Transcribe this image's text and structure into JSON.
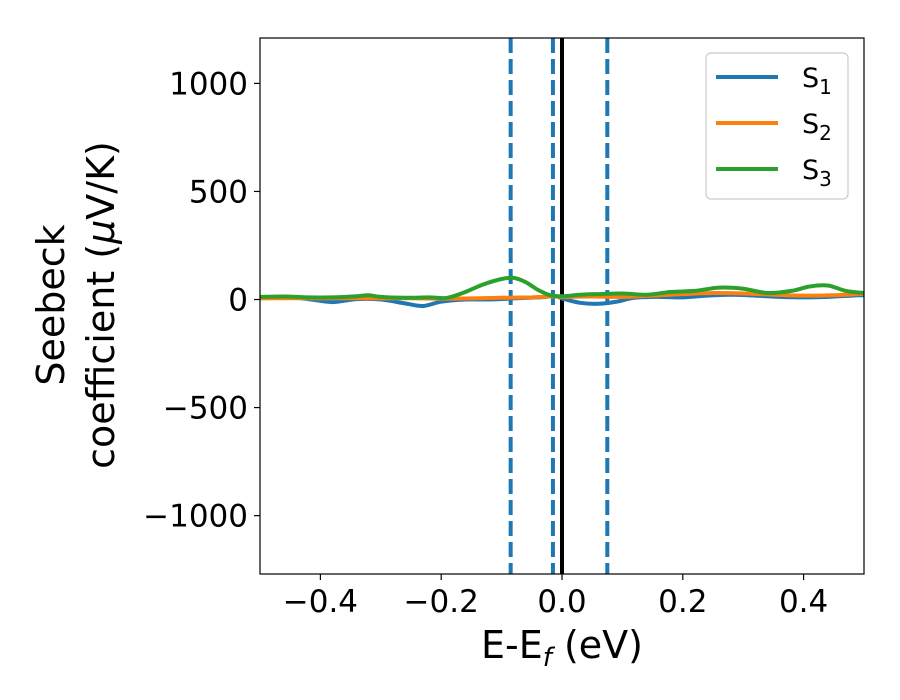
{
  "chart_data": {
    "type": "line",
    "xlabel": {
      "main": "E-E",
      "sub": "f",
      "unit": " (eV)"
    },
    "ylabel": {
      "line1": "Seebeck",
      "line2": "coefficient  (",
      "mu": "μ",
      "unit": "V/K)"
    },
    "xlim": [
      -0.5,
      0.5
    ],
    "ylim": [
      -1270,
      1210
    ],
    "x_ticks": [
      -0.4,
      -0.2,
      0.0,
      0.2,
      0.4
    ],
    "x_tick_labels": [
      "−0.4",
      "−0.2",
      "0.0",
      "0.2",
      "0.4"
    ],
    "y_ticks": [
      1000,
      500,
      0,
      -500,
      -1000
    ],
    "y_tick_labels": [
      "1000",
      "500",
      "0",
      "−500",
      "−1000"
    ],
    "legend_position": "top-right",
    "vlines": [
      {
        "x": -0.085,
        "style": "dashed",
        "color": "#1f77b4"
      },
      {
        "x": -0.015,
        "style": "dashed",
        "color": "#1f77b4"
      },
      {
        "x": 0.0,
        "style": "solid",
        "color": "#000000"
      },
      {
        "x": 0.075,
        "style": "dashed",
        "color": "#1f77b4"
      }
    ],
    "series": [
      {
        "name": "S",
        "sub": "1",
        "color": "#1f77b4",
        "x": [
          -0.5,
          -0.46,
          -0.42,
          -0.38,
          -0.34,
          -0.3,
          -0.26,
          -0.23,
          -0.2,
          -0.16,
          -0.12,
          -0.08,
          -0.04,
          -0.01,
          0.0,
          0.03,
          0.06,
          0.09,
          0.12,
          0.16,
          0.2,
          0.24,
          0.28,
          0.32,
          0.36,
          0.4,
          0.44,
          0.48,
          0.5
        ],
        "y": [
          10,
          12,
          2,
          -12,
          2,
          0,
          -18,
          -30,
          -10,
          0,
          0,
          5,
          10,
          15,
          5,
          -15,
          -20,
          -10,
          8,
          12,
          10,
          18,
          22,
          18,
          12,
          10,
          12,
          18,
          20
        ]
      },
      {
        "name": "S",
        "sub": "2",
        "color": "#ff7f0e",
        "x": [
          -0.5,
          -0.45,
          -0.4,
          -0.35,
          -0.3,
          -0.25,
          -0.2,
          -0.15,
          -0.1,
          -0.05,
          -0.02,
          0.0,
          0.05,
          0.1,
          0.15,
          0.2,
          0.25,
          0.3,
          0.35,
          0.4,
          0.45,
          0.5
        ],
        "y": [
          5,
          6,
          5,
          6,
          5,
          6,
          4,
          5,
          8,
          10,
          14,
          12,
          14,
          12,
          18,
          25,
          30,
          28,
          22,
          18,
          20,
          26
        ]
      },
      {
        "name": "S",
        "sub": "3",
        "color": "#2ca02c",
        "x": [
          -0.5,
          -0.46,
          -0.42,
          -0.38,
          -0.34,
          -0.32,
          -0.3,
          -0.26,
          -0.22,
          -0.19,
          -0.16,
          -0.13,
          -0.1,
          -0.08,
          -0.06,
          -0.04,
          -0.02,
          0.0,
          0.03,
          0.06,
          0.1,
          0.14,
          0.18,
          0.22,
          0.26,
          0.3,
          0.34,
          0.38,
          0.41,
          0.44,
          0.47,
          0.5
        ],
        "y": [
          12,
          14,
          10,
          10,
          15,
          20,
          12,
          8,
          10,
          8,
          35,
          70,
          95,
          100,
          80,
          45,
          20,
          15,
          22,
          25,
          28,
          22,
          35,
          40,
          55,
          50,
          30,
          40,
          60,
          65,
          40,
          30
        ]
      }
    ]
  }
}
